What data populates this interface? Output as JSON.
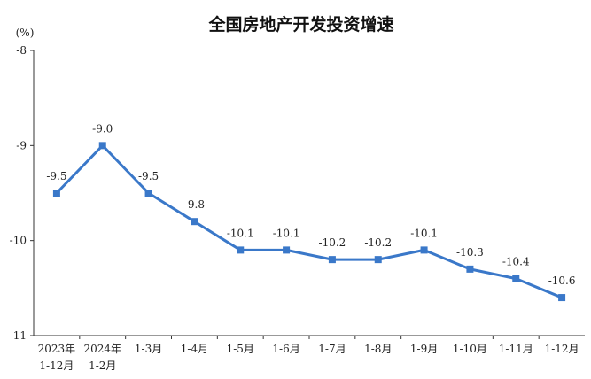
{
  "chart_data": {
    "type": "line",
    "title": "全国房地产开发投资增速",
    "ylabel": "(%)",
    "xlabel": "",
    "ylim": [
      -11,
      -8
    ],
    "yticks": [
      -8,
      -9,
      -10,
      -11
    ],
    "grid": false,
    "categories": [
      [
        "2023年",
        "1-12月"
      ],
      [
        "2024年",
        "1-2月"
      ],
      [
        "1-3月"
      ],
      [
        "1-4月"
      ],
      [
        "1-5月"
      ],
      [
        "1-6月"
      ],
      [
        "1-7月"
      ],
      [
        "1-8月"
      ],
      [
        "1-9月"
      ],
      [
        "1-10月"
      ],
      [
        "1-11月"
      ],
      [
        "1-12月"
      ]
    ],
    "series": [
      {
        "values": [
          -9.5,
          -9.0,
          -9.5,
          -9.8,
          -10.1,
          -10.1,
          -10.2,
          -10.2,
          -10.1,
          -10.3,
          -10.4,
          -10.6
        ],
        "labels": [
          "-9.5",
          "-9.0",
          "-9.5",
          "-9.8",
          "-10.1",
          "-10.1",
          "-10.2",
          "-10.2",
          "-10.1",
          "-10.3",
          "-10.4",
          "-10.6"
        ],
        "color": "#3a78c9"
      }
    ]
  }
}
